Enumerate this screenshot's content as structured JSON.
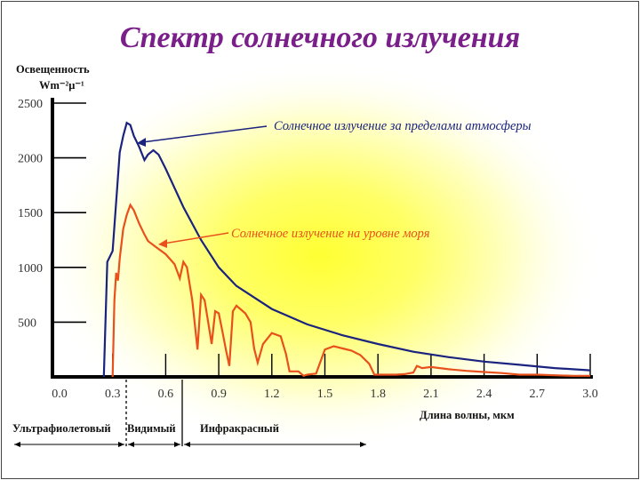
{
  "title": "Спектр солнечного излучения",
  "chart_data": {
    "type": "line",
    "ylabel_line1": "Освещенность",
    "ylabel_line2": "Wm⁻²μ⁻¹",
    "xlabel": "Длина волны, мкм",
    "xlim": [
      0,
      3.0
    ],
    "ylim": [
      0,
      2500
    ],
    "x_ticks": [
      "0.0",
      "0.3",
      "0.6",
      "0.9",
      "1.2",
      "1.5",
      "1.8",
      "2.1",
      "2.4",
      "2.7",
      "3.0"
    ],
    "y_ticks": [
      "2500",
      "2000",
      "1500",
      "1000",
      "500"
    ],
    "series": [
      {
        "name": "Солнечное излучение за пределами атмосферы",
        "color": "#1a237e",
        "points": [
          [
            0.25,
            0
          ],
          [
            0.27,
            1050
          ],
          [
            0.3,
            1150
          ],
          [
            0.32,
            1600
          ],
          [
            0.34,
            2050
          ],
          [
            0.36,
            2200
          ],
          [
            0.38,
            2320
          ],
          [
            0.4,
            2300
          ],
          [
            0.42,
            2200
          ],
          [
            0.45,
            2100
          ],
          [
            0.48,
            1980
          ],
          [
            0.5,
            2030
          ],
          [
            0.53,
            2070
          ],
          [
            0.56,
            2030
          ],
          [
            0.6,
            1900
          ],
          [
            0.7,
            1550
          ],
          [
            0.8,
            1250
          ],
          [
            0.9,
            1000
          ],
          [
            1.0,
            830
          ],
          [
            1.2,
            620
          ],
          [
            1.4,
            480
          ],
          [
            1.6,
            380
          ],
          [
            1.8,
            300
          ],
          [
            2.0,
            230
          ],
          [
            2.2,
            180
          ],
          [
            2.4,
            140
          ],
          [
            2.6,
            110
          ],
          [
            2.8,
            80
          ],
          [
            3.0,
            60
          ]
        ]
      },
      {
        "name": "Солнечное излучение на уровне моря",
        "color": "#e8501c",
        "points": [
          [
            0.3,
            0
          ],
          [
            0.31,
            700
          ],
          [
            0.32,
            950
          ],
          [
            0.33,
            880
          ],
          [
            0.34,
            1080
          ],
          [
            0.36,
            1350
          ],
          [
            0.38,
            1480
          ],
          [
            0.4,
            1570
          ],
          [
            0.42,
            1520
          ],
          [
            0.45,
            1400
          ],
          [
            0.48,
            1300
          ],
          [
            0.5,
            1240
          ],
          [
            0.55,
            1180
          ],
          [
            0.6,
            1120
          ],
          [
            0.65,
            1030
          ],
          [
            0.68,
            900
          ],
          [
            0.7,
            1050
          ],
          [
            0.72,
            1000
          ],
          [
            0.75,
            700
          ],
          [
            0.78,
            250
          ],
          [
            0.8,
            750
          ],
          [
            0.82,
            700
          ],
          [
            0.84,
            500
          ],
          [
            0.86,
            300
          ],
          [
            0.88,
            600
          ],
          [
            0.9,
            580
          ],
          [
            0.92,
            420
          ],
          [
            0.94,
            250
          ],
          [
            0.96,
            100
          ],
          [
            0.98,
            600
          ],
          [
            1.0,
            650
          ],
          [
            1.05,
            580
          ],
          [
            1.08,
            500
          ],
          [
            1.1,
            260
          ],
          [
            1.12,
            130
          ],
          [
            1.15,
            300
          ],
          [
            1.2,
            400
          ],
          [
            1.25,
            370
          ],
          [
            1.28,
            210
          ],
          [
            1.3,
            50
          ],
          [
            1.35,
            50
          ],
          [
            1.38,
            10
          ],
          [
            1.4,
            20
          ],
          [
            1.45,
            30
          ],
          [
            1.5,
            250
          ],
          [
            1.55,
            280
          ],
          [
            1.6,
            260
          ],
          [
            1.65,
            240
          ],
          [
            1.7,
            200
          ],
          [
            1.75,
            120
          ],
          [
            1.78,
            20
          ],
          [
            1.82,
            20
          ],
          [
            1.9,
            20
          ],
          [
            1.95,
            25
          ],
          [
            2.0,
            40
          ],
          [
            2.02,
            100
          ],
          [
            2.05,
            80
          ],
          [
            2.1,
            90
          ],
          [
            2.2,
            70
          ],
          [
            2.3,
            55
          ],
          [
            2.4,
            45
          ],
          [
            2.5,
            35
          ],
          [
            2.6,
            20
          ],
          [
            2.7,
            20
          ],
          [
            2.8,
            15
          ],
          [
            2.9,
            10
          ],
          [
            3.0,
            10
          ]
        ]
      }
    ],
    "annotations": {
      "top": "Солнечное излучение за пределами атмосферы",
      "sea": "Солнечное излучение на уровне моря"
    },
    "regions": [
      "Ультрафиолетовый",
      "Видимый",
      "Инфракрасный"
    ],
    "colors": {
      "background_glow": "#ffff44",
      "axis": "#000000"
    }
  }
}
